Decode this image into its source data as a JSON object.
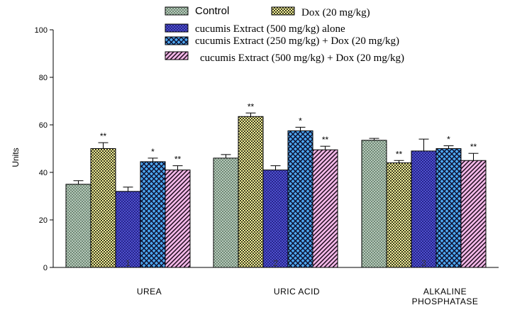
{
  "chart_data": {
    "type": "bar",
    "title": "",
    "xlabel": "",
    "ylabel": "Units",
    "ylim": [
      0,
      100
    ],
    "yticks": [
      0,
      20,
      40,
      60,
      80,
      100
    ],
    "categories": [
      {
        "lines": [
          "UREA"
        ],
        "number": "1"
      },
      {
        "lines": [
          "URIC ACID"
        ],
        "number": "2"
      },
      {
        "lines": [
          "ALKALINE",
          "PHOSPHATASE"
        ],
        "number": "3"
      }
    ],
    "series": [
      {
        "name": "Control",
        "pattern": "pat-control",
        "values": [
          35,
          46,
          53.5
        ],
        "errors": [
          1.5,
          1.5,
          0.8
        ],
        "sig": [
          "",
          "",
          ""
        ]
      },
      {
        "name": "Dox (20 mg/kg)",
        "pattern": "pat-dox",
        "values": [
          50,
          63.5,
          44
        ],
        "errors": [
          2.5,
          1.5,
          1.0
        ],
        "sig": [
          "**",
          "**",
          "**"
        ]
      },
      {
        "name": "cucumis  Extract (500 mg/kg) alone",
        "pattern": "pat-ext500",
        "values": [
          32,
          41,
          49
        ],
        "errors": [
          1.8,
          1.8,
          5.0
        ],
        "sig": [
          "",
          "",
          ""
        ]
      },
      {
        "name": "cucumis Extract (250 mg/kg) + Dox (20 mg/kg)",
        "pattern": "pat-ext250dox",
        "values": [
          44.5,
          57.5,
          50
        ],
        "errors": [
          1.5,
          1.5,
          1.2
        ],
        "sig": [
          "*",
          "*",
          "*"
        ]
      },
      {
        "name": "cucumis Extract (500 mg/kg)  + Dox (20 mg/kg)",
        "pattern": "pat-ext500dox",
        "values": [
          41,
          49.5,
          45
        ],
        "errors": [
          1.8,
          1.5,
          3.0
        ],
        "sig": [
          "**",
          "**",
          "**"
        ]
      }
    ],
    "legend_position": "top"
  }
}
